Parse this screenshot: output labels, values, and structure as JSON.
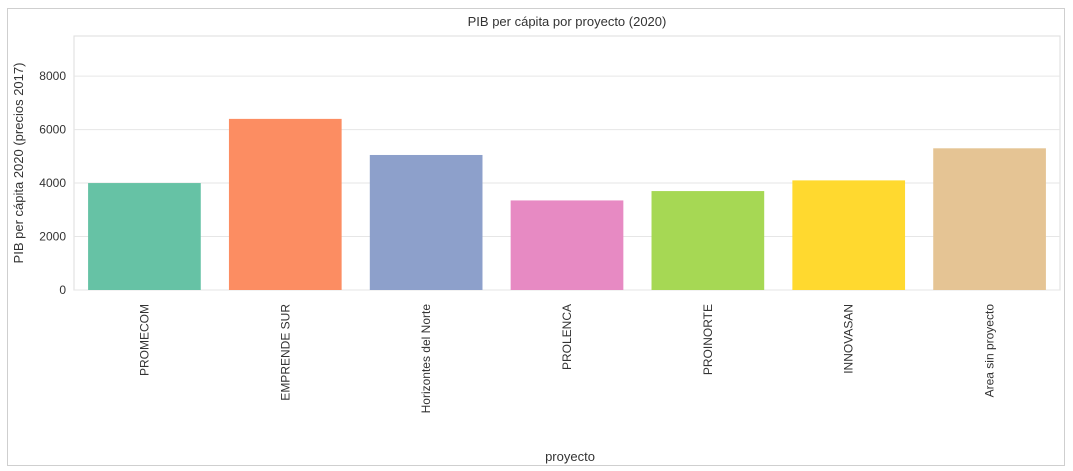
{
  "chart_data": {
    "type": "bar",
    "title": "PIB per cápita por proyecto (2020)",
    "xlabel": "proyecto",
    "ylabel": "PIB per cápita 2020 (precios 2017)",
    "categories": [
      "PROMECOM",
      "EMPRENDE SUR",
      "Horizontes del Norte",
      "PROLENCA",
      "PROINORTE",
      "INNOVASAN",
      "Area sin proyecto"
    ],
    "values": [
      4000,
      6400,
      5050,
      3350,
      3700,
      4100,
      5300
    ],
    "colors": [
      "#66c2a5",
      "#fc8d62",
      "#8da0cb",
      "#e78ac3",
      "#a6d854",
      "#ffd92f",
      "#e5c494"
    ],
    "ylim": [
      0,
      9500
    ],
    "yticks": [
      0,
      2000,
      4000,
      6000,
      8000
    ],
    "grid": true,
    "legend": "none"
  }
}
